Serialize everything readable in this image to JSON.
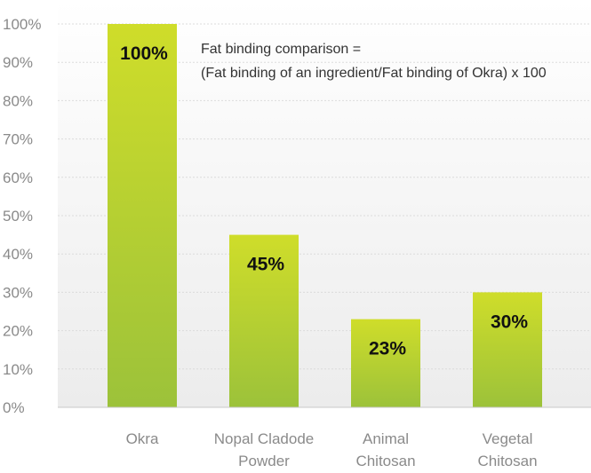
{
  "chart_data": {
    "type": "bar",
    "categories": [
      [
        "Okra"
      ],
      [
        "Nopal Cladode",
        "Powder"
      ],
      [
        "Animal",
        "Chitosan"
      ],
      [
        "Vegetal",
        "Chitosan"
      ]
    ],
    "values": [
      100,
      45,
      23,
      30
    ],
    "data_labels": [
      "100%",
      "45%",
      "23%",
      "30%"
    ],
    "ylim": [
      0,
      100
    ],
    "yticks": [
      0,
      10,
      20,
      30,
      40,
      50,
      60,
      70,
      80,
      90,
      100
    ],
    "ytick_labels": [
      "0%",
      "10%",
      "20%",
      "30%",
      "40%",
      "50%",
      "60%",
      "70%",
      "80%",
      "90%",
      "100%"
    ],
    "grid": true,
    "annotation": [
      "Fat binding comparison =",
      "(Fat binding of an ingredient/Fat binding of Okra) x 100"
    ],
    "colors": {
      "bar_top": "#cfdd2a",
      "bar_bottom": "#9cc23a",
      "background_top": "#ffffff",
      "background_bottom": "#ececec"
    }
  }
}
